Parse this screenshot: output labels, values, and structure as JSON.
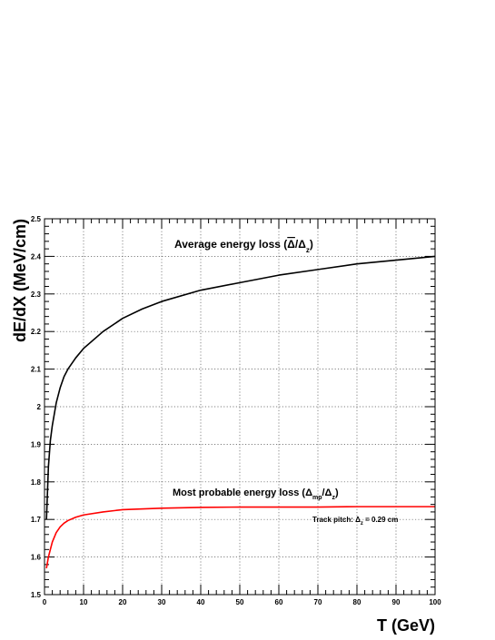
{
  "chart_data": {
    "type": "line",
    "xlabel": "T (GeV)",
    "ylabel": "dE/dX (MeV/cm)",
    "xlim": [
      0,
      100
    ],
    "ylim": [
      1.5,
      2.5
    ],
    "x_ticks": [
      0,
      10,
      20,
      30,
      40,
      50,
      60,
      70,
      80,
      90,
      100
    ],
    "x_tick_labels": [
      "0",
      "10",
      "20",
      "30",
      "40",
      "50",
      "60",
      "70",
      "80",
      "90",
      "100"
    ],
    "y_ticks": [
      1.5,
      1.6,
      1.7,
      1.8,
      1.9,
      2,
      2.1,
      2.2,
      2.3,
      2.4,
      2.5
    ],
    "y_tick_labels": [
      "1.5",
      "1.6",
      "1.7",
      "1.8",
      "1.9",
      "2",
      "2.1",
      "2.2",
      "2.3",
      "2.4",
      "2.5"
    ],
    "grid": true,
    "series": [
      {
        "color": "#000000",
        "x": [
          0.5,
          1,
          1.5,
          2,
          3,
          4,
          5,
          6,
          8,
          10,
          15,
          20,
          25,
          30,
          40,
          50,
          60,
          70,
          80,
          90,
          100
        ],
        "y": [
          1.7,
          1.84,
          1.91,
          1.95,
          2.01,
          2.05,
          2.08,
          2.1,
          2.13,
          2.155,
          2.2,
          2.235,
          2.26,
          2.28,
          2.31,
          2.33,
          2.35,
          2.365,
          2.38,
          2.39,
          2.4
        ]
      },
      {
        "color": "#ff0000",
        "x": [
          0.5,
          1,
          1.5,
          2,
          3,
          4,
          5,
          6,
          8,
          10,
          15,
          20,
          30,
          40,
          50,
          60,
          70,
          80,
          90,
          100
        ],
        "y": [
          1.57,
          1.6,
          1.62,
          1.64,
          1.665,
          1.68,
          1.69,
          1.697,
          1.706,
          1.712,
          1.72,
          1.726,
          1.73,
          1.732,
          1.733,
          1.733,
          1.733,
          1.734,
          1.734,
          1.734
        ]
      }
    ],
    "annotations": {
      "average_prefix": "Average energy loss (",
      "average_delta_bar": "Δ",
      "average_slash": "/Δ",
      "average_sub": "z",
      "average_close": ")",
      "mp_prefix": "Most probable energy loss (Δ",
      "mp_sub1": "mp",
      "mp_slash": "/Δ",
      "mp_sub2": "z",
      "mp_close": ")",
      "pitch_prefix": "Track pitch: Δ",
      "pitch_sub": "z",
      "pitch_suffix": " = 0.29 cm"
    }
  }
}
